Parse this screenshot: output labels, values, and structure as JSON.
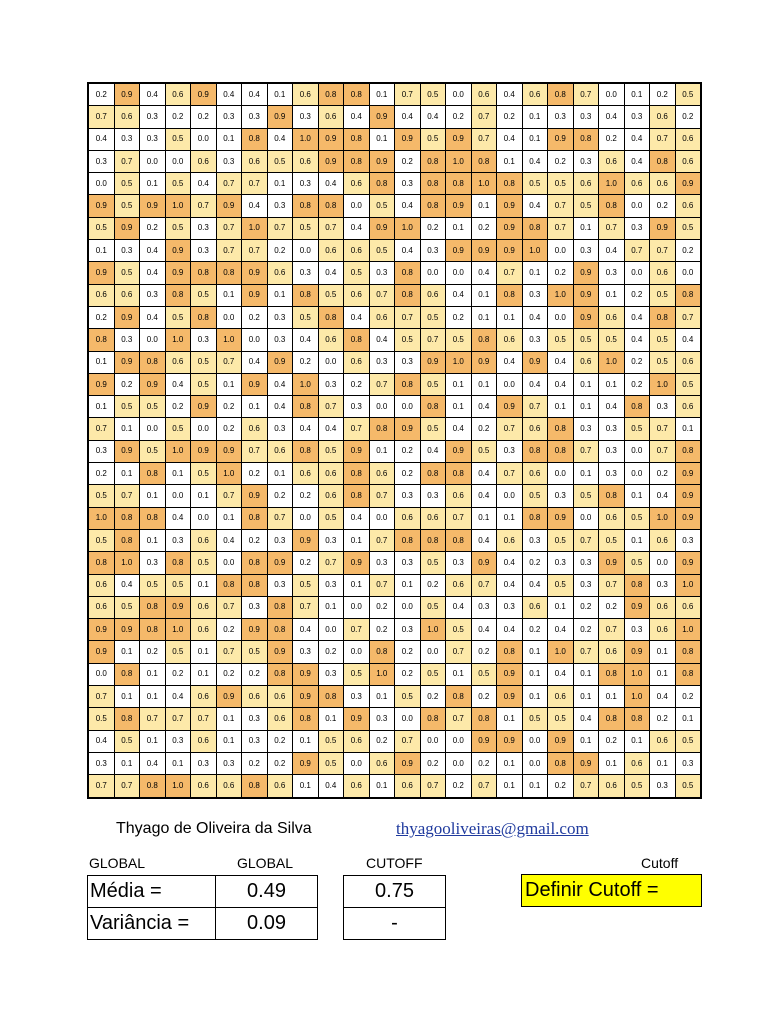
{
  "grid": {
    "rows": [
      [
        "0.2",
        "0.9",
        "0.4",
        "0.6",
        "0.9",
        "0.4",
        "0.4",
        "0.1",
        "0.6",
        "0.8",
        "0.8",
        "0.1",
        "0.7",
        "0.5",
        "0.0",
        "0.6",
        "0.4",
        "0.6",
        "0.8",
        "0.7",
        "0.0",
        "0.1",
        "0.2",
        "0.5"
      ],
      [
        "0.7",
        "0.6",
        "0.3",
        "0.2",
        "0.2",
        "0.3",
        "0.3",
        "0.9",
        "0.3",
        "0.6",
        "0.4",
        "0.9",
        "0.4",
        "0.4",
        "0.2",
        "0.7",
        "0.2",
        "0.1",
        "0.3",
        "0.3",
        "0.4",
        "0.3",
        "0.6",
        "0.2"
      ],
      [
        "0.4",
        "0.3",
        "0.3",
        "0.5",
        "0.0",
        "0.1",
        "0.8",
        "0.4",
        "1.0",
        "0.9",
        "0.8",
        "0.1",
        "0.9",
        "0.5",
        "0.9",
        "0.7",
        "0.4",
        "0.1",
        "0.9",
        "0.8",
        "0.2",
        "0.4",
        "0.7",
        "0.6"
      ],
      [
        "0.3",
        "0.7",
        "0.0",
        "0.0",
        "0.6",
        "0.3",
        "0.6",
        "0.5",
        "0.6",
        "0.9",
        "0.8",
        "0.9",
        "0.2",
        "0.8",
        "1.0",
        "0.8",
        "0.1",
        "0.4",
        "0.2",
        "0.3",
        "0.6",
        "0.4",
        "0.8",
        "0.6"
      ],
      [
        "0.0",
        "0.5",
        "0.1",
        "0.5",
        "0.4",
        "0.7",
        "0.7",
        "0.1",
        "0.3",
        "0.4",
        "0.6",
        "0.8",
        "0.3",
        "0.8",
        "0.8",
        "1.0",
        "0.8",
        "0.5",
        "0.5",
        "0.6",
        "1.0",
        "0.6",
        "0.6",
        "0.9"
      ],
      [
        "0.9",
        "0.5",
        "0.9",
        "1.0",
        "0.7",
        "0.9",
        "0.4",
        "0.3",
        "0.8",
        "0.8",
        "0.0",
        "0.5",
        "0.4",
        "0.8",
        "0.9",
        "0.1",
        "0.9",
        "0.4",
        "0.7",
        "0.5",
        "0.8",
        "0.0",
        "0.2",
        "0.6"
      ],
      [
        "0.5",
        "0.9",
        "0.2",
        "0.5",
        "0.3",
        "0.7",
        "1.0",
        "0.7",
        "0.5",
        "0.7",
        "0.4",
        "0.9",
        "1.0",
        "0.2",
        "0.1",
        "0.2",
        "0.9",
        "0.8",
        "0.7",
        "0.1",
        "0.7",
        "0.3",
        "0.9",
        "0.5"
      ],
      [
        "0.1",
        "0.3",
        "0.4",
        "0.9",
        "0.3",
        "0.7",
        "0.7",
        "0.2",
        "0.0",
        "0.6",
        "0.6",
        "0.5",
        "0.4",
        "0.3",
        "0.9",
        "0.9",
        "0.9",
        "1.0",
        "0.0",
        "0.3",
        "0.4",
        "0.7",
        "0.7",
        "0.2"
      ],
      [
        "0.9",
        "0.5",
        "0.4",
        "0.9",
        "0.8",
        "0.8",
        "0.9",
        "0.6",
        "0.3",
        "0.4",
        "0.5",
        "0.3",
        "0.8",
        "0.0",
        "0.0",
        "0.4",
        "0.7",
        "0.1",
        "0.2",
        "0.9",
        "0.3",
        "0.0",
        "0.6",
        "0.0"
      ],
      [
        "0.6",
        "0.6",
        "0.3",
        "0.8",
        "0.5",
        "0.1",
        "0.9",
        "0.1",
        "0.8",
        "0.5",
        "0.6",
        "0.7",
        "0.8",
        "0.6",
        "0.4",
        "0.1",
        "0.8",
        "0.3",
        "1.0",
        "0.9",
        "0.1",
        "0.2",
        "0.5",
        "0.8"
      ],
      [
        "0.2",
        "0.9",
        "0.4",
        "0.5",
        "0.8",
        "0.0",
        "0.2",
        "0.3",
        "0.5",
        "0.8",
        "0.4",
        "0.6",
        "0.7",
        "0.5",
        "0.2",
        "0.1",
        "0.1",
        "0.4",
        "0.0",
        "0.9",
        "0.6",
        "0.4",
        "0.8",
        "0.7"
      ],
      [
        "0.8",
        "0.3",
        "0.0",
        "1.0",
        "0.3",
        "1.0",
        "0.0",
        "0.3",
        "0.4",
        "0.6",
        "0.8",
        "0.4",
        "0.5",
        "0.7",
        "0.5",
        "0.8",
        "0.6",
        "0.3",
        "0.5",
        "0.5",
        "0.5",
        "0.4",
        "0.5",
        "0.4"
      ],
      [
        "0.1",
        "0.9",
        "0.8",
        "0.6",
        "0.5",
        "0.7",
        "0.4",
        "0.9",
        "0.2",
        "0.0",
        "0.6",
        "0.3",
        "0.3",
        "0.9",
        "1.0",
        "0.9",
        "0.4",
        "0.9",
        "0.4",
        "0.6",
        "1.0",
        "0.2",
        "0.5",
        "0.6"
      ],
      [
        "0.9",
        "0.2",
        "0.9",
        "0.4",
        "0.5",
        "0.1",
        "0.9",
        "0.4",
        "1.0",
        "0.3",
        "0.2",
        "0.7",
        "0.8",
        "0.5",
        "0.1",
        "0.1",
        "0.0",
        "0.4",
        "0.4",
        "0.1",
        "0.1",
        "0.2",
        "1.0",
        "0.5"
      ],
      [
        "0.1",
        "0.5",
        "0.5",
        "0.2",
        "0.9",
        "0.2",
        "0.1",
        "0.4",
        "0.8",
        "0.7",
        "0.3",
        "0.0",
        "0.0",
        "0.8",
        "0.1",
        "0.4",
        "0.9",
        "0.7",
        "0.1",
        "0.1",
        "0.4",
        "0.8",
        "0.3",
        "0.6"
      ],
      [
        "0.7",
        "0.1",
        "0.0",
        "0.5",
        "0.0",
        "0.2",
        "0.6",
        "0.3",
        "0.4",
        "0.4",
        "0.7",
        "0.8",
        "0.9",
        "0.5",
        "0.4",
        "0.2",
        "0.7",
        "0.6",
        "0.8",
        "0.3",
        "0.3",
        "0.5",
        "0.7",
        "0.1"
      ],
      [
        "0.3",
        "0.9",
        "0.5",
        "1.0",
        "0.9",
        "0.9",
        "0.7",
        "0.6",
        "0.8",
        "0.5",
        "0.9",
        "0.1",
        "0.2",
        "0.4",
        "0.9",
        "0.5",
        "0.3",
        "0.8",
        "0.8",
        "0.7",
        "0.3",
        "0.0",
        "0.7",
        "0.8"
      ],
      [
        "0.2",
        "0.1",
        "0.8",
        "0.1",
        "0.5",
        "1.0",
        "0.2",
        "0.1",
        "0.6",
        "0.6",
        "0.8",
        "0.6",
        "0.2",
        "0.8",
        "0.8",
        "0.4",
        "0.7",
        "0.6",
        "0.0",
        "0.1",
        "0.3",
        "0.0",
        "0.2",
        "0.9"
      ],
      [
        "0.5",
        "0.7",
        "0.1",
        "0.0",
        "0.1",
        "0.7",
        "0.9",
        "0.2",
        "0.2",
        "0.6",
        "0.8",
        "0.7",
        "0.3",
        "0.3",
        "0.6",
        "0.4",
        "0.0",
        "0.5",
        "0.3",
        "0.5",
        "0.8",
        "0.1",
        "0.4",
        "0.9"
      ],
      [
        "1.0",
        "0.8",
        "0.8",
        "0.4",
        "0.0",
        "0.1",
        "0.8",
        "0.7",
        "0.0",
        "0.5",
        "0.4",
        "0.0",
        "0.6",
        "0.6",
        "0.7",
        "0.1",
        "0.1",
        "0.8",
        "0.9",
        "0.0",
        "0.6",
        "0.5",
        "1.0",
        "0.9"
      ],
      [
        "0.5",
        "0.8",
        "0.1",
        "0.3",
        "0.6",
        "0.4",
        "0.2",
        "0.3",
        "0.9",
        "0.3",
        "0.1",
        "0.7",
        "0.8",
        "0.8",
        "0.8",
        "0.4",
        "0.6",
        "0.3",
        "0.5",
        "0.7",
        "0.5",
        "0.1",
        "0.6",
        "0.3"
      ],
      [
        "0.8",
        "1.0",
        "0.3",
        "0.8",
        "0.5",
        "0.0",
        "0.8",
        "0.9",
        "0.2",
        "0.7",
        "0.9",
        "0.3",
        "0.3",
        "0.5",
        "0.3",
        "0.9",
        "0.4",
        "0.2",
        "0.3",
        "0.3",
        "0.9",
        "0.5",
        "0.0",
        "0.9"
      ],
      [
        "0.6",
        "0.4",
        "0.5",
        "0.5",
        "0.1",
        "0.8",
        "0.8",
        "0.3",
        "0.5",
        "0.3",
        "0.1",
        "0.7",
        "0.1",
        "0.2",
        "0.6",
        "0.7",
        "0.4",
        "0.4",
        "0.5",
        "0.3",
        "0.7",
        "0.8",
        "0.3",
        "1.0"
      ],
      [
        "0.6",
        "0.5",
        "0.8",
        "0.9",
        "0.6",
        "0.7",
        "0.3",
        "0.8",
        "0.7",
        "0.1",
        "0.0",
        "0.2",
        "0.0",
        "0.5",
        "0.4",
        "0.3",
        "0.3",
        "0.6",
        "0.1",
        "0.2",
        "0.2",
        "0.9",
        "0.6",
        "0.6"
      ],
      [
        "0.9",
        "0.9",
        "0.8",
        "1.0",
        "0.6",
        "0.2",
        "0.9",
        "0.8",
        "0.4",
        "0.0",
        "0.7",
        "0.2",
        "0.3",
        "1.0",
        "0.5",
        "0.4",
        "0.4",
        "0.2",
        "0.4",
        "0.2",
        "0.7",
        "0.3",
        "0.6",
        "1.0"
      ],
      [
        "0.9",
        "0.1",
        "0.2",
        "0.5",
        "0.1",
        "0.7",
        "0.5",
        "0.9",
        "0.3",
        "0.2",
        "0.0",
        "0.8",
        "0.2",
        "0.0",
        "0.7",
        "0.2",
        "0.8",
        "0.1",
        "1.0",
        "0.7",
        "0.6",
        "0.9",
        "0.1",
        "0.8"
      ],
      [
        "0.0",
        "0.8",
        "0.1",
        "0.2",
        "0.1",
        "0.2",
        "0.2",
        "0.8",
        "0.9",
        "0.3",
        "0.5",
        "1.0",
        "0.2",
        "0.5",
        "0.1",
        "0.5",
        "0.9",
        "0.1",
        "0.4",
        "0.1",
        "0.8",
        "1.0",
        "0.1",
        "0.8"
      ],
      [
        "0.7",
        "0.1",
        "0.1",
        "0.4",
        "0.6",
        "0.9",
        "0.6",
        "0.6",
        "0.9",
        "0.8",
        "0.3",
        "0.1",
        "0.5",
        "0.2",
        "0.8",
        "0.2",
        "0.9",
        "0.1",
        "0.6",
        "0.1",
        "0.1",
        "1.0",
        "0.4",
        "0.2"
      ],
      [
        "0.5",
        "0.8",
        "0.7",
        "0.7",
        "0.7",
        "0.1",
        "0.3",
        "0.6",
        "0.8",
        "0.1",
        "0.9",
        "0.3",
        "0.0",
        "0.8",
        "0.7",
        "0.8",
        "0.1",
        "0.5",
        "0.5",
        "0.4",
        "0.8",
        "0.8",
        "0.2",
        "0.1"
      ],
      [
        "0.4",
        "0.5",
        "0.1",
        "0.3",
        "0.6",
        "0.1",
        "0.3",
        "0.2",
        "0.1",
        "0.5",
        "0.6",
        "0.2",
        "0.7",
        "0.0",
        "0.0",
        "0.9",
        "0.9",
        "0.0",
        "0.9",
        "0.1",
        "0.2",
        "0.1",
        "0.6",
        "0.5"
      ],
      [
        "0.3",
        "0.1",
        "0.4",
        "0.1",
        "0.3",
        "0.3",
        "0.2",
        "0.2",
        "0.9",
        "0.5",
        "0.0",
        "0.6",
        "0.9",
        "0.2",
        "0.0",
        "0.2",
        "0.1",
        "0.0",
        "0.8",
        "0.9",
        "0.1",
        "0.6",
        "0.1",
        "0.3"
      ],
      [
        "0.7",
        "0.7",
        "0.8",
        "1.0",
        "0.6",
        "0.6",
        "0.8",
        "0.6",
        "0.1",
        "0.4",
        "0.6",
        "0.1",
        "0.6",
        "0.7",
        "0.2",
        "0.7",
        "0.1",
        "0.1",
        "0.2",
        "0.7",
        "0.6",
        "0.5",
        "0.3",
        "0.5"
      ]
    ]
  },
  "footer": {
    "author": "Thyago de Oliveira da Silva",
    "email": "thyagooliveiras@gmail.com",
    "header_global_1": "GLOBAL",
    "header_global_2": "GLOBAL",
    "header_cutoff": "CUTOFF",
    "header_cutoff_right": "Cutoff",
    "media_label": "Média =",
    "variancia_label": "Variância =",
    "media_global": "0.49",
    "variancia_global": "0.09",
    "media_cutoff": "0.75",
    "variancia_cutoff": "-",
    "definir_cutoff_label": "Definir Cutoff ="
  },
  "colors": {
    "low": "#ffffff",
    "mid": "#fde9a9",
    "high": "#f5b96a",
    "button_bg": "#ffff00",
    "link": "#1f3a9e"
  }
}
